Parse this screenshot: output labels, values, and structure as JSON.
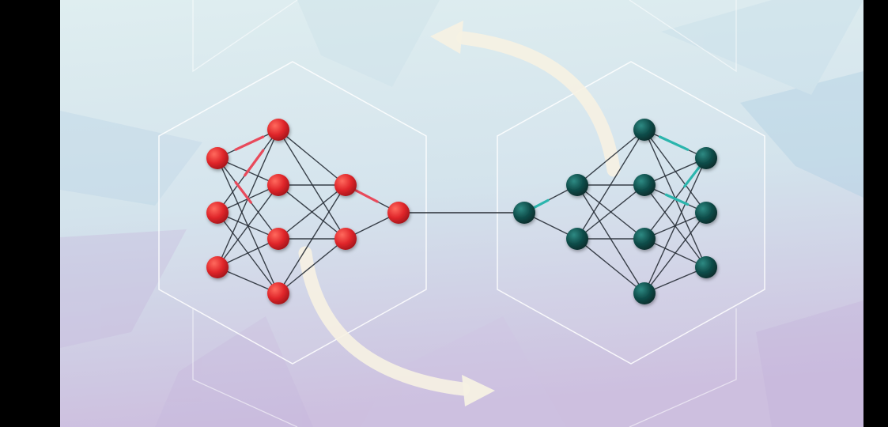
{
  "colors": {
    "letterbox": "#000000",
    "bg_top": "#dfeef0",
    "bg_mid": "#d3e3ec",
    "bg_bottom": "#cdbfdf",
    "hex_outline": "#ffffff",
    "arrow": "#f6f1e3",
    "edge": "#262c35",
    "red_node": "#e0262a",
    "red_highlight": "#ff6a5e",
    "red_edge_highlight": "#e84a5b",
    "teal_node": "#0f4d4a",
    "teal_highlight": "#2e8a83",
    "teal_edge_highlight": "#2bb5ad",
    "link": "#2a2f36"
  },
  "networks": [
    {
      "name": "red-network",
      "color": "red",
      "layers": [
        3,
        4,
        2,
        1
      ]
    },
    {
      "name": "teal-network",
      "color": "teal",
      "layers": [
        1,
        2,
        4,
        3
      ]
    }
  ],
  "arrows": [
    {
      "name": "top-arrow",
      "direction": "left"
    },
    {
      "name": "bottom-arrow",
      "direction": "right"
    }
  ]
}
